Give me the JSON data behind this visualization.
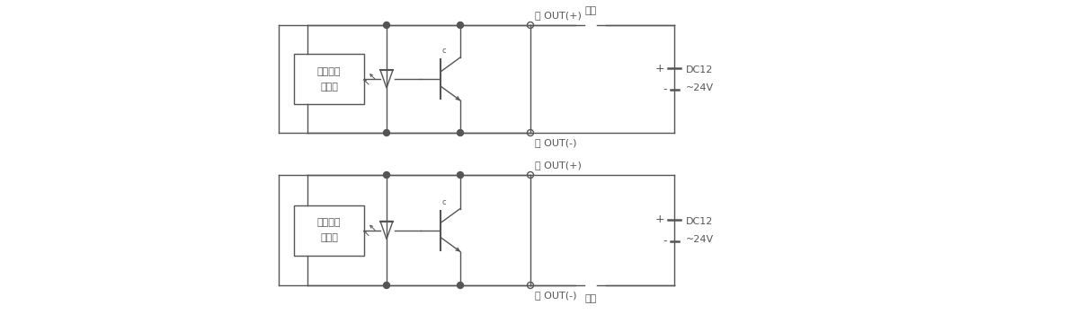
{
  "bg_color": "#ffffff",
  "line_color": "#555555",
  "line_width": 1.0,
  "text_cha_out_plus": "茶 OUT(+)",
  "text_ao_out_minus": "青 OUT(-)",
  "text_fuka": "負荷",
  "text_switch": "スイッチ",
  "text_main": "主回路",
  "text_dc12": "DC12",
  "text_24v": "~24V",
  "text_plus": "+",
  "text_minus": "-"
}
